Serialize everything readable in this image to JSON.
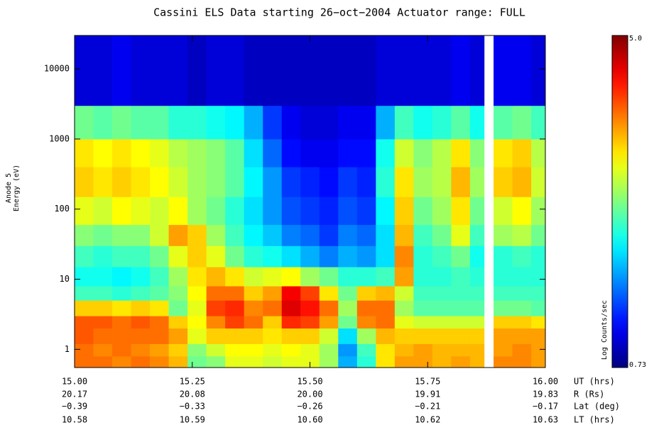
{
  "chart_data": {
    "type": "heatmap",
    "title": "Cassini ELS Data starting 26−oct−2004  Actuator range: FULL",
    "ylabel": [
      "Anode 5",
      "Energy (eV)"
    ],
    "xlabel": "UT (hrs)",
    "ylog": true,
    "xlim": [
      15.0,
      16.0
    ],
    "ylim": [
      0.55,
      30000
    ],
    "xticks": [
      {
        "value": 15.0,
        "label": "15.00"
      },
      {
        "value": 15.25,
        "label": "15.25"
      },
      {
        "value": 15.5,
        "label": "15.50"
      },
      {
        "value": 15.75,
        "label": "15.75"
      },
      {
        "value": 16.0,
        "label": "16.00"
      }
    ],
    "yticks": [
      1,
      10,
      100,
      1000,
      10000
    ],
    "extra_x_rows": [
      {
        "label": "R (Rs)",
        "ticks": [
          "20.17",
          "20.08",
          "20.00",
          "19.91",
          "19.83"
        ]
      },
      {
        "label": "Lat (deg)",
        "ticks": [
          "−0.39",
          "−0.33",
          "−0.26",
          "−0.21",
          "−0.17"
        ]
      },
      {
        "label": "LT (hrs)",
        "ticks": [
          "10.58",
          "10.59",
          "10.60",
          "10.62",
          "10.63"
        ]
      }
    ],
    "colorbar_label": "Log Counts/sec",
    "zlim": [
      0.73,
      5.0
    ],
    "zticks": [
      {
        "value": 5.0,
        "label": "5.0"
      },
      0.73
    ],
    "colormap": "jet",
    "x_edges": [
      15.0,
      15.04,
      15.08,
      15.12,
      15.16,
      15.2,
      15.24,
      15.28,
      15.32,
      15.36,
      15.4,
      15.44,
      15.48,
      15.52,
      15.56,
      15.6,
      15.64,
      15.68,
      15.72,
      15.76,
      15.8,
      15.84,
      15.87,
      15.89,
      15.93,
      15.97,
      16.0
    ],
    "y_edges": [
      0.55,
      0.8,
      1.2,
      2,
      3,
      5,
      8,
      15,
      30,
      60,
      150,
      400,
      1000,
      3000,
      30000
    ],
    "z": [
      [
        4.0,
        4.0,
        3.9,
        4.0,
        3.9,
        3.7,
        2.8,
        2.9,
        3.3,
        3.3,
        3.2,
        3.3,
        3.3,
        3.0,
        2.0,
        2.5,
        3.5,
        3.8,
        3.8,
        3.7,
        3.8,
        3.7,
        null,
        3.9,
        3.9,
        3.8
      ],
      [
        4.0,
        3.9,
        4.0,
        3.9,
        3.8,
        3.6,
        2.9,
        3.2,
        3.4,
        3.4,
        3.3,
        3.4,
        3.3,
        3.0,
        1.9,
        2.6,
        3.5,
        3.7,
        3.8,
        3.7,
        3.7,
        3.7,
        null,
        3.8,
        3.9,
        3.8
      ],
      [
        4.1,
        4.0,
        4.0,
        4.0,
        4.0,
        3.8,
        3.3,
        3.6,
        3.6,
        3.6,
        3.5,
        3.6,
        3.6,
        3.2,
        2.2,
        3.0,
        3.7,
        3.6,
        3.6,
        3.6,
        3.6,
        3.6,
        null,
        3.8,
        3.8,
        3.8
      ],
      [
        4.1,
        4.1,
        4.0,
        4.1,
        4.0,
        3.6,
        3.4,
        3.9,
        4.2,
        4.0,
        3.6,
        4.3,
        4.2,
        3.8,
        2.8,
        3.9,
        4.0,
        3.3,
        3.2,
        3.2,
        3.2,
        3.2,
        null,
        3.6,
        3.6,
        3.5
      ],
      [
        3.6,
        3.6,
        3.5,
        3.6,
        3.5,
        2.8,
        3.3,
        4.2,
        4.3,
        3.9,
        4.0,
        4.6,
        4.4,
        4.0,
        3.0,
        4.0,
        4.0,
        3.0,
        2.7,
        2.7,
        2.7,
        2.7,
        null,
        2.8,
        2.8,
        2.7
      ],
      [
        2.6,
        2.6,
        2.5,
        2.6,
        2.7,
        2.9,
        3.4,
        4.0,
        4.0,
        3.6,
        3.8,
        4.5,
        4.2,
        3.5,
        2.8,
        3.6,
        3.7,
        3.2,
        2.6,
        2.6,
        2.6,
        2.6,
        null,
        2.6,
        2.6,
        2.6
      ],
      [
        2.4,
        2.4,
        2.3,
        2.4,
        2.6,
        3.0,
        3.5,
        3.7,
        3.5,
        3.2,
        3.3,
        3.4,
        3.0,
        2.8,
        2.5,
        2.5,
        2.6,
        3.8,
        2.5,
        2.5,
        2.6,
        2.5,
        null,
        2.5,
        2.5,
        2.5
      ],
      [
        2.6,
        2.5,
        2.6,
        2.6,
        2.8,
        3.3,
        3.6,
        3.3,
        2.8,
        2.5,
        2.4,
        2.2,
        2.0,
        1.8,
        2.0,
        1.9,
        2.2,
        3.9,
        2.5,
        2.6,
        2.8,
        2.4,
        null,
        2.5,
        2.6,
        2.5
      ],
      [
        2.9,
        2.8,
        2.9,
        2.9,
        3.2,
        3.8,
        3.6,
        3.0,
        2.6,
        2.3,
        2.1,
        1.8,
        1.7,
        1.5,
        1.8,
        1.7,
        2.2,
        3.7,
        2.6,
        2.8,
        3.3,
        2.6,
        null,
        3.0,
        3.1,
        2.8
      ],
      [
        3.3,
        3.2,
        3.4,
        3.3,
        3.2,
        3.4,
        3.0,
        2.8,
        2.5,
        2.2,
        1.9,
        1.6,
        1.5,
        1.4,
        1.6,
        1.5,
        2.3,
        3.6,
        2.8,
        3.0,
        3.5,
        2.8,
        null,
        3.2,
        3.4,
        3.0
      ],
      [
        3.6,
        3.5,
        3.6,
        3.5,
        3.4,
        3.2,
        3.0,
        2.9,
        2.7,
        2.3,
        1.9,
        1.5,
        1.4,
        1.3,
        1.5,
        1.4,
        2.5,
        3.5,
        3.0,
        3.1,
        3.7,
        3.0,
        null,
        3.6,
        3.7,
        3.2
      ],
      [
        3.5,
        3.4,
        3.5,
        3.4,
        3.3,
        3.1,
        3.0,
        2.9,
        2.7,
        2.2,
        1.7,
        1.3,
        1.2,
        1.2,
        1.3,
        1.3,
        2.4,
        3.2,
        2.9,
        3.1,
        3.5,
        2.9,
        null,
        3.5,
        3.6,
        3.1
      ],
      [
        2.8,
        2.7,
        2.8,
        2.7,
        2.7,
        2.5,
        2.5,
        2.4,
        2.3,
        2.0,
        1.5,
        1.2,
        1.1,
        1.1,
        1.2,
        1.2,
        2.0,
        2.6,
        2.4,
        2.5,
        2.7,
        2.4,
        null,
        2.7,
        2.8,
        2.6
      ],
      [
        1.1,
        1.1,
        1.2,
        1.1,
        1.1,
        1.1,
        1.0,
        1.1,
        1.1,
        1.0,
        1.0,
        1.0,
        1.0,
        1.0,
        1.0,
        1.0,
        1.1,
        1.1,
        1.1,
        1.1,
        1.2,
        1.1,
        null,
        1.2,
        1.2,
        1.1
      ]
    ]
  }
}
